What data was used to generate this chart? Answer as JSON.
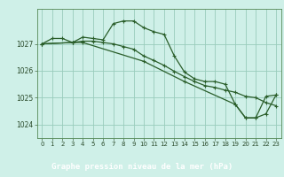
{
  "title": "Graphe pression niveau de la mer (hPa)",
  "bg_plot": "#cff0e8",
  "bg_label": "#2d6a2d",
  "label_text_color": "#ffffff",
  "grid_color": "#99ccbb",
  "line_color": "#2a5e2a",
  "xlim": [
    -0.5,
    23.5
  ],
  "ylim": [
    1023.5,
    1028.3
  ],
  "yticks": [
    1024,
    1025,
    1026,
    1027
  ],
  "xticks": [
    0,
    1,
    2,
    3,
    4,
    5,
    6,
    7,
    8,
    9,
    10,
    11,
    12,
    13,
    14,
    15,
    16,
    17,
    18,
    19,
    20,
    21,
    22,
    23
  ],
  "series": [
    {
      "x": [
        0,
        1,
        2,
        3,
        4,
        5,
        6,
        7,
        8,
        9,
        10,
        11,
        12,
        13,
        14,
        15,
        16,
        17,
        18,
        19,
        20,
        21,
        22,
        23
      ],
      "y": [
        1027.0,
        1027.2,
        1027.2,
        1027.05,
        1027.25,
        1027.2,
        1027.15,
        1027.75,
        1027.85,
        1027.85,
        1027.6,
        1027.45,
        1027.35,
        1026.55,
        1025.95,
        1025.7,
        1025.6,
        1025.6,
        1025.5,
        1024.75,
        1024.25,
        1024.25,
        1025.05,
        1025.1
      ]
    },
    {
      "x": [
        0,
        3,
        4,
        5,
        6,
        7,
        8,
        9,
        10,
        11,
        12,
        13,
        14,
        15,
        16,
        17,
        18,
        19,
        20,
        21,
        22,
        23
      ],
      "y": [
        1027.0,
        1027.05,
        1027.1,
        1027.1,
        1027.05,
        1027.0,
        1026.9,
        1026.8,
        1026.55,
        1026.38,
        1026.2,
        1025.98,
        1025.78,
        1025.6,
        1025.45,
        1025.38,
        1025.28,
        1025.2,
        1025.05,
        1025.0,
        1024.82,
        1024.7
      ]
    },
    {
      "x": [
        0,
        3,
        4,
        10,
        14,
        19,
        20,
        21,
        22,
        23
      ],
      "y": [
        1027.0,
        1027.05,
        1027.05,
        1026.35,
        1025.6,
        1024.75,
        1024.25,
        1024.25,
        1024.4,
        1025.1
      ]
    }
  ]
}
